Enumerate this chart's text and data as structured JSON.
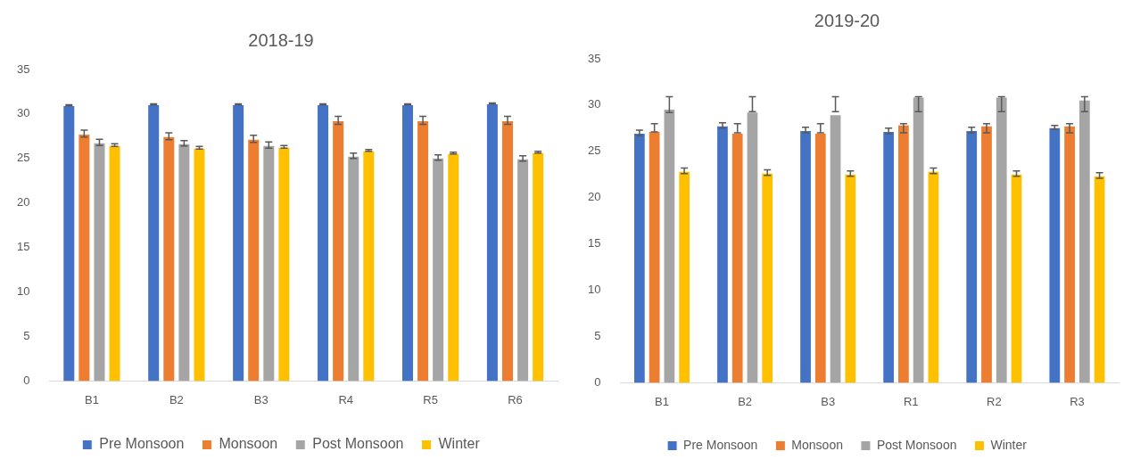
{
  "chart_data": [
    {
      "type": "bar",
      "title": "2018-19",
      "categories": [
        "B1",
        "B2",
        "B3",
        "R4",
        "R5",
        "R6"
      ],
      "ylim": [
        0,
        35
      ],
      "yticks": [
        0,
        5,
        10,
        15,
        20,
        25,
        30,
        35
      ],
      "grid": false,
      "legend": "bottom",
      "series": [
        {
          "name": "Pre Monsoon",
          "color": "#4472c4",
          "values": [
            31.0,
            31.1,
            31.1,
            31.1,
            31.1,
            31.2
          ],
          "errors": [
            0.05,
            0.05,
            0.05,
            0.05,
            0.05,
            0.05
          ]
        },
        {
          "name": "Monsoon",
          "color": "#ed7d31",
          "values": [
            27.8,
            27.5,
            27.2,
            29.3,
            29.3,
            29.3
          ],
          "errors": [
            0.4,
            0.4,
            0.4,
            0.45,
            0.45,
            0.45
          ]
        },
        {
          "name": "Post Monsoon",
          "color": "#a5a5a5",
          "values": [
            26.8,
            26.7,
            26.5,
            25.3,
            25.1,
            25.0
          ],
          "errors": [
            0.35,
            0.3,
            0.35,
            0.3,
            0.3,
            0.3
          ]
        },
        {
          "name": "Winter",
          "color": "#ffc000",
          "values": [
            26.5,
            26.2,
            26.3,
            25.9,
            25.6,
            25.7
          ],
          "errors": [
            0.15,
            0.15,
            0.15,
            0.1,
            0.1,
            0.1
          ]
        }
      ]
    },
    {
      "type": "bar",
      "title": "2019-20",
      "categories": [
        "B1",
        "B2",
        "B3",
        "R1",
        "R2",
        "R3"
      ],
      "ylim": [
        0,
        35
      ],
      "yticks": [
        0,
        5,
        10,
        15,
        20,
        25,
        30,
        35
      ],
      "grid": false,
      "legend": "bottom",
      "series": [
        {
          "name": "Pre Monsoon",
          "color": "#4472c4",
          "values": [
            27.0,
            27.8,
            27.3,
            27.2,
            27.3,
            27.6
          ],
          "errors": [
            0.3,
            0.3,
            0.3,
            0.3,
            0.3,
            0.2
          ]
        },
        {
          "name": "Monsoon",
          "color": "#ed7d31",
          "values": [
            27.2,
            27.0,
            27.0,
            27.9,
            27.8,
            27.8
          ],
          "errors": [
            [
              27.1,
              28.0
            ],
            [
              27.0,
              28.0
            ],
            [
              27.0,
              28.0
            ],
            [
              27.0,
              28.0
            ],
            [
              27.0,
              28.0
            ],
            [
              27.0,
              28.0
            ]
          ]
        },
        {
          "name": "Post Monsoon",
          "color": "#a5a5a5",
          "values": [
            29.6,
            29.3,
            29.0,
            30.9,
            30.9,
            30.6
          ],
          "errors": [
            [
              29.2,
              30.9
            ],
            [
              29.3,
              30.9
            ],
            [
              29.3,
              30.9
            ],
            [
              29.3,
              30.9
            ],
            [
              29.3,
              30.9
            ],
            [
              29.3,
              30.9
            ]
          ]
        },
        {
          "name": "Winter",
          "color": "#ffc000",
          "values": [
            22.9,
            22.7,
            22.6,
            22.9,
            22.6,
            22.4
          ],
          "errors": [
            0.3,
            0.3,
            0.3,
            0.3,
            0.3,
            0.3
          ]
        }
      ]
    }
  ]
}
